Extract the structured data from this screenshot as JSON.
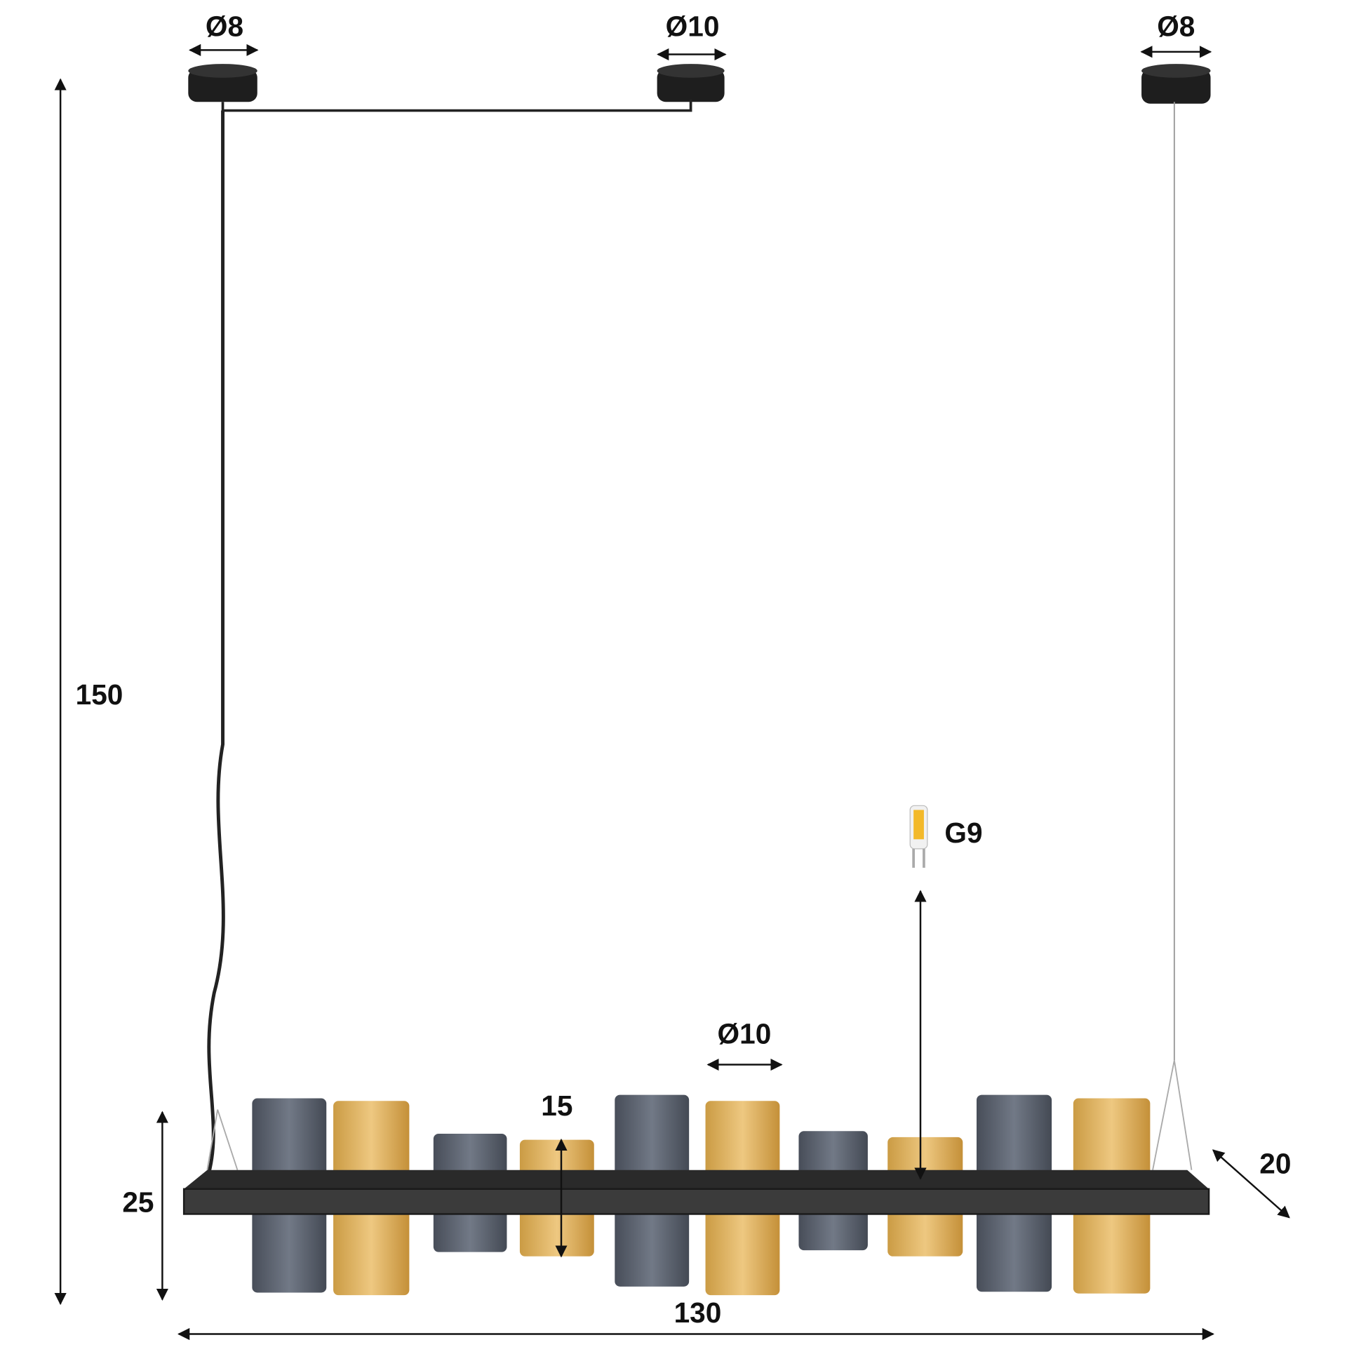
{
  "dimensions": {
    "canopy_left_diameter": "Ø8",
    "canopy_middle_diameter": "Ø10",
    "canopy_right_diameter": "Ø8",
    "total_height": "150",
    "bulb_type": "G9",
    "shade_diameter": "Ø10",
    "small_shade_height": "15",
    "fixture_height": "25",
    "depth": "20",
    "width": "130"
  }
}
